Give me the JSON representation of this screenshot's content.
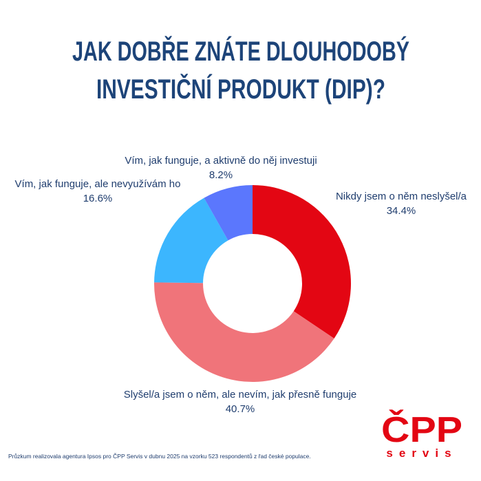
{
  "chart_data": {
    "type": "donut",
    "title": [
      "JAK DOBŘE ZNÁTE DLOUHODOBÝ",
      "INVESTIČNÍ PRODUKT (DIP)?"
    ],
    "categories": [
      "Nikdy jsem o něm neslyšel/a",
      "Slyšel/a jsem o něm, ale nevím, jak přesně funguje",
      "Vím, jak funguje, ale nevyužívám ho",
      "Vím, jak funguje, a aktivně do něj investuji"
    ],
    "values": [
      34.4,
      40.7,
      16.6,
      8.2
    ],
    "value_labels": [
      "34.4%",
      "40.7%",
      "16.6%",
      "8.2%"
    ],
    "colors": [
      "#e30613",
      "#f0747a",
      "#3cb6fe",
      "#5b77fd"
    ],
    "footnote": "Průzkum realizovala agentura Ipsos pro ČPP Servis v dubnu 2025 na vzorku 523 respondentů z řad české populace.",
    "logo": {
      "main": "ČPP",
      "sub": "servis"
    }
  }
}
